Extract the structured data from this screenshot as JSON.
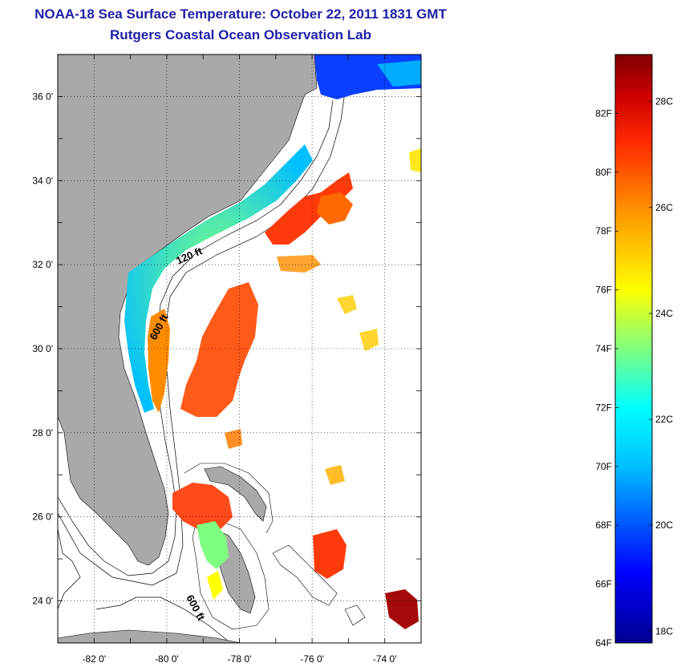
{
  "title": {
    "line1": "NOAA-18 Sea Surface Temperature:  October 22, 2011 1831 GMT",
    "line2": "Rutgers Coastal Ocean Observation Lab"
  },
  "map": {
    "lat_range": [
      23,
      37
    ],
    "lon_range": [
      -83,
      -73
    ],
    "lat_ticks": [
      "24 0'",
      "26 0'",
      "28 0'",
      "30 0'",
      "32 0'",
      "34 0'",
      "36 0'"
    ],
    "lon_ticks": [
      "-82 0'",
      "-80 0'",
      "-78 0'",
      "-76 0'",
      "-74 0'"
    ],
    "contour_labels": [
      "120 ft",
      "600 ft",
      "600 ft"
    ],
    "land_color": "#a9a9a9",
    "grid": true
  },
  "colorbar": {
    "fahrenheit": [
      "82F",
      "80F",
      "78F",
      "76F",
      "74F",
      "72F",
      "70F",
      "68F",
      "66F",
      "64F"
    ],
    "celsius": [
      "28C",
      "26C",
      "24C",
      "22C",
      "20C",
      "18C"
    ],
    "range_f": [
      64,
      84
    ],
    "colors": [
      "#00008f",
      "#0000ff",
      "#00bfff",
      "#00ffff",
      "#7fff7f",
      "#ffff00",
      "#ff9f00",
      "#ff2a00",
      "#cc0000",
      "#800000"
    ]
  }
}
